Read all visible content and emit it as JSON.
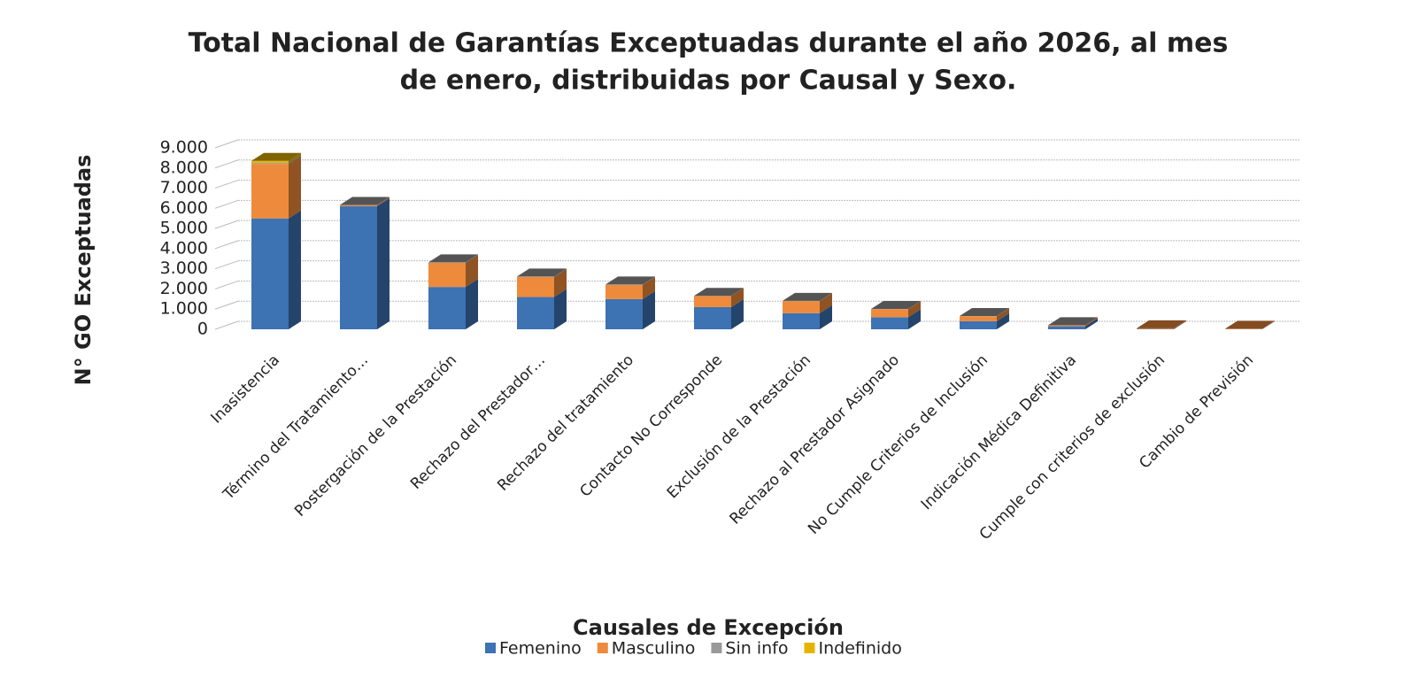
{
  "chart_data": {
    "type": "bar3d_stacked",
    "title": "Total Nacional de Garantías Exceptuadas durante el año 2026, al mes de enero, distribuidas por Causal y Sexo.",
    "title_lines": [
      "Total Nacional de Garantías Exceptuadas durante el año 2026, al mes",
      "de enero, distribuidas por Causal y Sexo."
    ],
    "x_label": "Causales de Excepción",
    "y_label": "N° GO Exceptuadas",
    "categories": [
      "Inasistencia",
      "Término del Tratamiento…",
      "Postergación de la Prestación",
      "Rechazo del Prestador…",
      "Rechazo del tratamiento",
      "Contacto No Corresponde",
      "Exclusión de la Prestación",
      "Rechazo al Prestador Asignado",
      "No Cumple Criterios de Inclusión",
      "Indicación Médica Definitiva",
      "Cumple con criterios de exclusión",
      "Cambio de Previsión"
    ],
    "series": [
      {
        "name": "Femenino",
        "color": "#3d72b3",
        "values": [
          5500,
          6100,
          2100,
          1600,
          1500,
          1100,
          800,
          600,
          400,
          150,
          20,
          10
        ]
      },
      {
        "name": "Masculino",
        "color": "#ee8a3c",
        "values": [
          2700,
          50,
          1200,
          1000,
          700,
          550,
          600,
          400,
          250,
          50,
          30,
          20
        ]
      },
      {
        "name": "Sin info",
        "color": "#999999",
        "values": [
          50,
          20,
          20,
          20,
          20,
          10,
          10,
          10,
          10,
          5,
          0,
          0
        ]
      },
      {
        "name": "Indefinido",
        "color": "#e6b400",
        "values": [
          100,
          0,
          0,
          0,
          0,
          0,
          0,
          0,
          0,
          0,
          0,
          0
        ]
      }
    ],
    "ylim": [
      0,
      9000
    ],
    "yticks": [
      0,
      {
        "value": 1000,
        "label": "1.000"
      },
      {
        "value": 2000,
        "label": "2.000"
      },
      {
        "value": 3000,
        "label": "3.000"
      },
      {
        "value": 4000,
        "label": "4.000"
      },
      {
        "value": 5000,
        "label": "5.000"
      },
      {
        "value": 6000,
        "label": "6.000"
      },
      {
        "value": 7000,
        "label": "7.000"
      },
      {
        "value": 8000,
        "label": "8.000"
      },
      {
        "value": 9000,
        "label": "9.000"
      }
    ],
    "grid": true,
    "legend": "bottom"
  }
}
